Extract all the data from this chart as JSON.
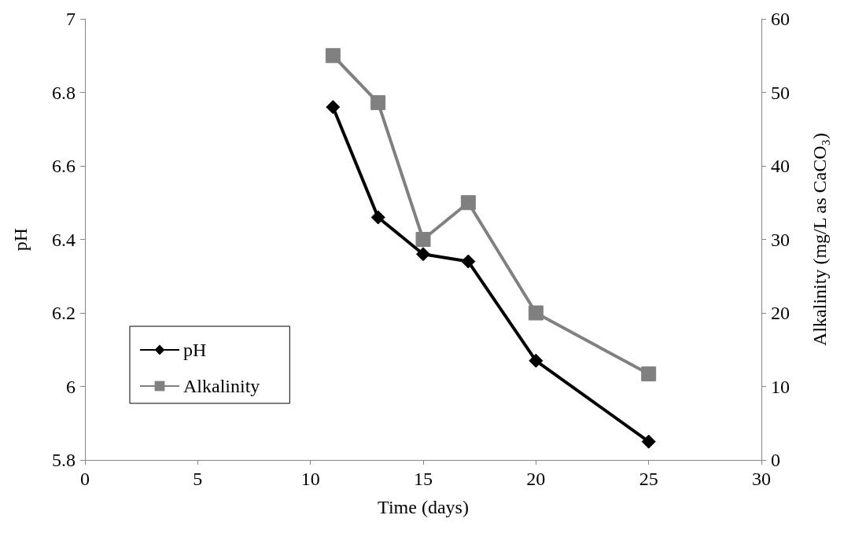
{
  "chart_data": {
    "type": "line",
    "xlabel": "Time (days)",
    "ylabel": "pH",
    "y2label": "Alkalinity (mg/L as CaCO₃)",
    "xlim": [
      0,
      30
    ],
    "xticks": [
      0,
      5,
      10,
      15,
      20,
      25,
      30
    ],
    "ylim": [
      5.8,
      7
    ],
    "yticks": [
      5.8,
      6,
      6.2,
      6.4,
      6.6,
      6.8,
      7
    ],
    "y2lim": [
      0,
      60
    ],
    "y2ticks": [
      0,
      10,
      20,
      30,
      40,
      50,
      60
    ],
    "grid": false,
    "legend": "bottom left",
    "line_style": "solid",
    "series": [
      {
        "name": "pH",
        "color": "#000000",
        "marker": "diamond",
        "x": [
          11,
          13,
          15,
          17,
          20,
          25
        ],
        "values": [
          6.76,
          6.46,
          6.36,
          6.34,
          6.07,
          5.85
        ]
      },
      {
        "name": "Alkalinity",
        "color": "#808080",
        "marker": "square",
        "axis": "y2",
        "x": [
          11,
          13,
          15,
          17,
          20,
          25
        ],
        "values": [
          55,
          48.6,
          30,
          35,
          20,
          11.7
        ]
      }
    ]
  }
}
